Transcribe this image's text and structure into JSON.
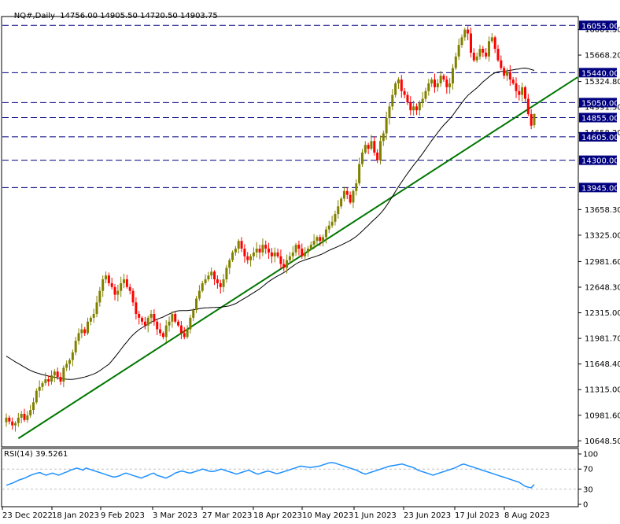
{
  "header": {
    "symbol": "NQ#,Daily",
    "ohlc": "14756.00 14905.50 14720.50 14903.75"
  },
  "rsi": {
    "label": "RSI(14) 39.5261",
    "levels": [
      "100",
      "70",
      "30",
      "0"
    ]
  },
  "colors": {
    "bull": "#808000",
    "bear": "#ff0000",
    "trend": "#007700",
    "ma": "#000080",
    "level_line": "#000080",
    "level_label_bg": "#000080",
    "rsi_line": "#1e90ff",
    "grid": "#c0c0c0"
  },
  "icons": [],
  "chart_data": [
    {
      "type": "candlestick",
      "title": "NQ#,Daily",
      "ylim": [
        10580,
        16160
      ],
      "price_axis_labels": [
        "16001.50",
        "15668.20",
        "15324.80",
        "14991.50",
        "14658.20",
        "13658.30",
        "13325.00",
        "12981.60",
        "12648.30",
        "12315.00",
        "11981.70",
        "11648.40",
        "11315.00",
        "10981.60",
        "10648.50"
      ],
      "horizontal_levels": [
        16055.0,
        15440.0,
        15050.0,
        14855.0,
        14605.0,
        14300.0,
        13945.0
      ],
      "level_labels": [
        "16055.00",
        "15440.00",
        "15050.00",
        "14855.00",
        "14605.00",
        "14300.00",
        "13945.00"
      ],
      "x_tick_labels": [
        "23 Dec 2022",
        "18 Jan 2023",
        "9 Feb 2023",
        "3 Mar 2023",
        "27 Mar 2023",
        "18 Apr 2023",
        "10 May 2023",
        "1 Jun 2023",
        "23 Jun 2023",
        "17 Jul 2023",
        "8 Aug 2023"
      ],
      "last_candle": {
        "open": 14756.0,
        "high": 14905.5,
        "low": 14720.5,
        "close": 14903.75
      },
      "closes": [
        10950,
        10900,
        10850,
        10880,
        10950,
        11000,
        10920,
        10980,
        11050,
        11150,
        11300,
        11350,
        11400,
        11450,
        11420,
        11500,
        11550,
        11480,
        11420,
        11600,
        11650,
        11700,
        11800,
        11950,
        12050,
        12100,
        12050,
        12200,
        12250,
        12300,
        12450,
        12600,
        12750,
        12800,
        12700,
        12650,
        12550,
        12600,
        12700,
        12750,
        12650,
        12600,
        12450,
        12300,
        12250,
        12200,
        12150,
        12250,
        12300,
        12200,
        12100,
        12050,
        12000,
        12150,
        12200,
        12300,
        12200,
        12150,
        12050,
        12000,
        12100,
        12250,
        12350,
        12500,
        12600,
        12700,
        12750,
        12800,
        12850,
        12750,
        12700,
        12650,
        12750,
        12900,
        13000,
        13100,
        13150,
        13250,
        13150,
        13050,
        13000,
        13050,
        13100,
        13150,
        13100,
        13200,
        13150,
        13100,
        13050,
        13100,
        13050,
        12950,
        12900,
        13000,
        13050,
        13100,
        13200,
        13150,
        13050,
        13100,
        13150,
        13200,
        13250,
        13300,
        13250,
        13300,
        13400,
        13450,
        13500,
        13600,
        13700,
        13800,
        13900,
        13850,
        13750,
        13900,
        14000,
        14250,
        14400,
        14500,
        14450,
        14550,
        14400,
        14300,
        14550,
        14650,
        14850,
        15000,
        15150,
        15300,
        15350,
        15200,
        15150,
        15050,
        14950,
        15000,
        14950,
        15050,
        15100,
        15200,
        15300,
        15350,
        15250,
        15300,
        15400,
        15350,
        15250,
        15300,
        15500,
        15650,
        15800,
        15900,
        16000,
        15950,
        15700,
        15600,
        15650,
        15750,
        15700,
        15650,
        15850,
        15900,
        15750,
        15600,
        15500,
        15400,
        15450,
        15350,
        15300,
        15200,
        15150,
        15250,
        15100,
        14900,
        14750,
        14903.75
      ],
      "moving_average": {
        "type": "line",
        "values_start": 11750,
        "values_end": 15350
      },
      "trendline": {
        "from": {
          "date": "27 Dec 2022",
          "price": 10680
        },
        "to": {
          "date": "end",
          "price": 15380
        }
      }
    },
    {
      "type": "line",
      "title": "RSI(14) 39.5261",
      "ylim": [
        0,
        100
      ],
      "yticks": [
        100,
        70,
        30,
        0
      ],
      "values": [
        38,
        40,
        42,
        45,
        48,
        50,
        52,
        55,
        58,
        60,
        62,
        63,
        60,
        58,
        60,
        62,
        60,
        58,
        60,
        63,
        65,
        68,
        70,
        72,
        70,
        68,
        72,
        70,
        68,
        66,
        64,
        62,
        60,
        58,
        56,
        54,
        55,
        57,
        60,
        62,
        60,
        58,
        56,
        54,
        52,
        55,
        57,
        60,
        62,
        58,
        56,
        54,
        52,
        55,
        58,
        62,
        64,
        66,
        65,
        63,
        62,
        64,
        66,
        68,
        70,
        68,
        66,
        65,
        66,
        68,
        70,
        68,
        66,
        64,
        62,
        60,
        62,
        64,
        66,
        68,
        65,
        62,
        60,
        62,
        64,
        66,
        65,
        63,
        61,
        62,
        64,
        66,
        68,
        70,
        72,
        74,
        76,
        75,
        74,
        73,
        74,
        75,
        76,
        78,
        80,
        82,
        83,
        82,
        80,
        78,
        76,
        74,
        72,
        70,
        68,
        65,
        62,
        60,
        62,
        64,
        66,
        68,
        70,
        72,
        74,
        76,
        77,
        78,
        79,
        80,
        78,
        76,
        74,
        72,
        68,
        66,
        64,
        62,
        60,
        58,
        60,
        62,
        64,
        66,
        68,
        70,
        72,
        75,
        78,
        80,
        78,
        76,
        74,
        72,
        70,
        68,
        66,
        64,
        62,
        60,
        58,
        56,
        54,
        52,
        50,
        48,
        46,
        44,
        40,
        36,
        34,
        33,
        39.5261
      ]
    }
  ]
}
